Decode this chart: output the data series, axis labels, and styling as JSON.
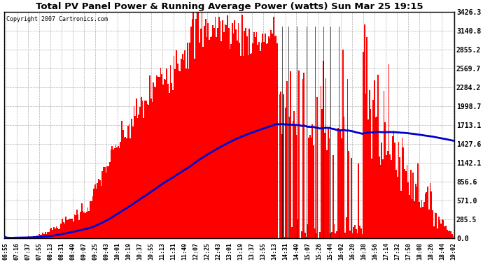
{
  "title": "Total PV Panel Power & Running Average Power (watts) Sun Mar 25 19:15",
  "copyright": "Copyright 2007 Cartronics.com",
  "background_color": "#ffffff",
  "plot_bg_color": "#ffffff",
  "grid_color": "#b0b0b0",
  "bar_color": "#ff0000",
  "line_color": "#0000cc",
  "ytick_labels": [
    "0.0",
    "285.5",
    "571.0",
    "856.6",
    "1142.1",
    "1427.6",
    "1713.1",
    "1998.7",
    "2284.2",
    "2569.7",
    "2855.2",
    "3140.8",
    "3426.3"
  ],
  "ymax": 3426.3,
  "ymin": 0.0,
  "xtick_labels": [
    "06:55",
    "07:16",
    "07:37",
    "07:55",
    "08:13",
    "08:31",
    "08:49",
    "09:07",
    "09:25",
    "09:43",
    "10:01",
    "10:19",
    "10:37",
    "10:55",
    "11:13",
    "11:31",
    "11:49",
    "12:07",
    "12:25",
    "12:43",
    "13:01",
    "13:19",
    "13:37",
    "13:55",
    "14:13",
    "14:31",
    "14:49",
    "15:07",
    "15:26",
    "15:44",
    "16:02",
    "16:20",
    "16:38",
    "16:56",
    "17:14",
    "17:32",
    "17:50",
    "18:08",
    "18:26",
    "18:44",
    "19:02"
  ]
}
